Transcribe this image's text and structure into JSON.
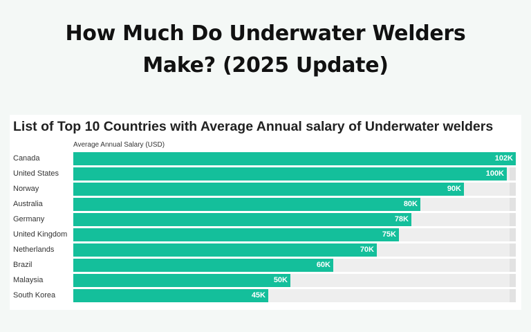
{
  "header": {
    "title_line1": "How Much Do Underwater Welders",
    "title_line2": "Make? (2025 Update)"
  },
  "colors": {
    "bar": "#14bf9b",
    "track": "#eeeeee",
    "background": "#f4f8f6"
  },
  "chart_data": {
    "type": "bar",
    "orientation": "horizontal",
    "title": "List of Top 10 Countries with Average Annual salary of Underwater welders",
    "xlabel": "Average Annual Salary (USD)",
    "ylabel": "",
    "categories": [
      "Canada",
      "United States",
      "Norway",
      "Australia",
      "Germany",
      "United Kingdom",
      "Netherlands",
      "Brazil",
      "Malaysia",
      "South Korea"
    ],
    "values": [
      102000,
      100000,
      90000,
      80000,
      78000,
      75000,
      70000,
      60000,
      50000,
      45000
    ],
    "value_labels": [
      "102K",
      "100K",
      "90K",
      "80K",
      "78K",
      "75K",
      "70K",
      "60K",
      "50K",
      "45K"
    ],
    "xlim": [
      0,
      102000
    ],
    "grid": false,
    "legend": "none"
  }
}
